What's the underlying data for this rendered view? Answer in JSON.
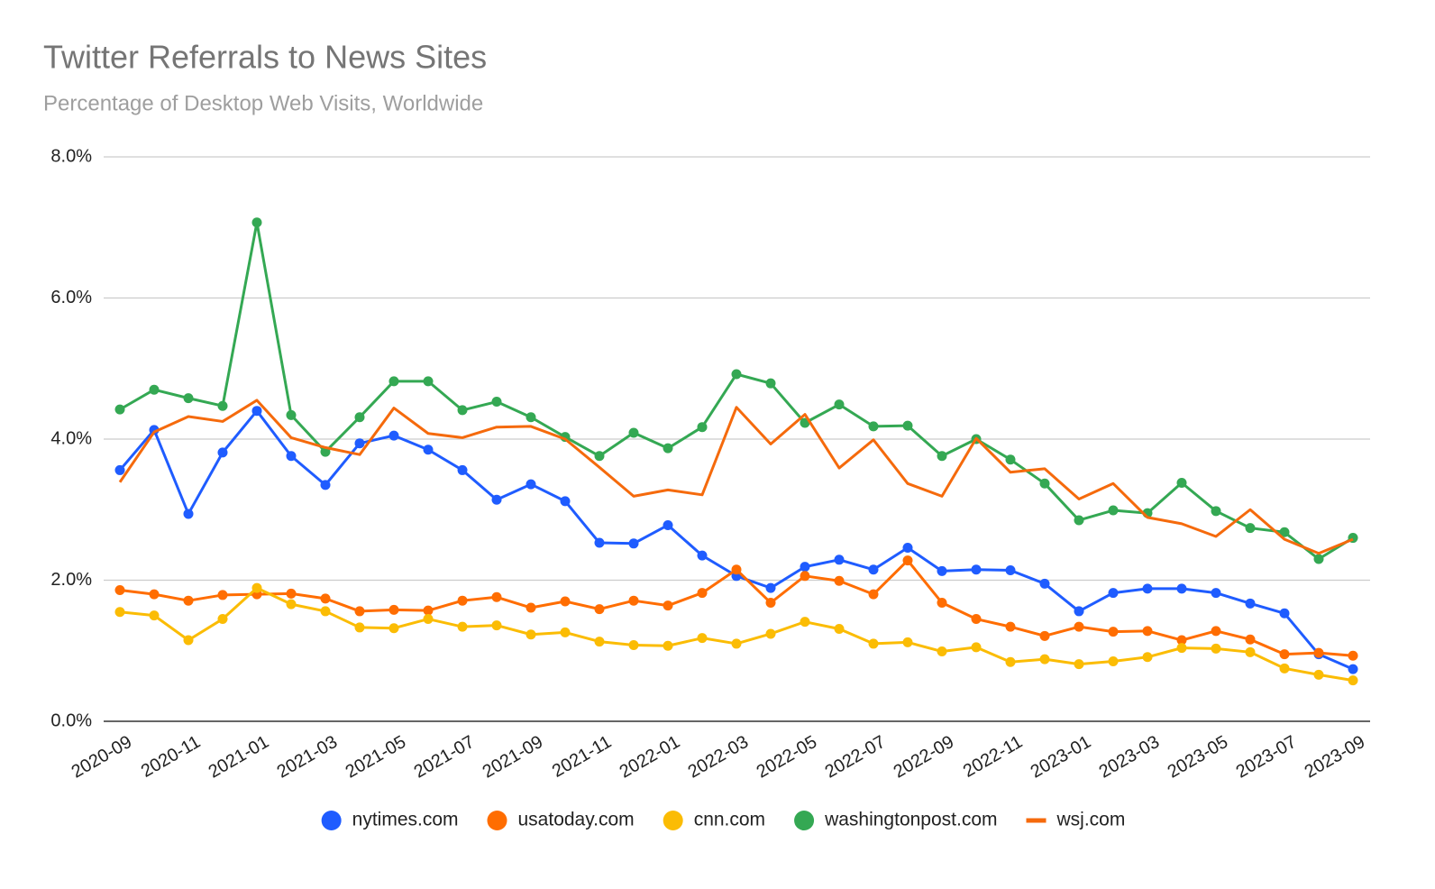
{
  "chart_data": {
    "type": "line",
    "title": "Twitter Referrals to News Sites",
    "subtitle": "Percentage of Desktop Web Visits, Worldwide",
    "categories": [
      "2020-09",
      null,
      "2020-11",
      null,
      "2021-01",
      null,
      "2021-03",
      null,
      "2021-05",
      null,
      "2021-07",
      null,
      "2021-09",
      null,
      "2021-11",
      null,
      "2022-01",
      null,
      "2022-03",
      null,
      "2022-05",
      null,
      "2022-07",
      null,
      "2022-09",
      null,
      "2022-11",
      null,
      "2023-01",
      null,
      "2023-03",
      null,
      "2023-05",
      null,
      "2023-07",
      null,
      "2023-09"
    ],
    "ylim": [
      0,
      8
    ],
    "yticks": [
      {
        "value": 0,
        "label": "0.0%"
      },
      {
        "value": 2,
        "label": "2.0%"
      },
      {
        "value": 4,
        "label": "4.0%"
      },
      {
        "value": 6,
        "label": "6.0%"
      },
      {
        "value": 8,
        "label": "8.0%"
      }
    ],
    "grid": true,
    "legend": "bottom",
    "series": [
      {
        "name": "nytimes.com",
        "color": "#1f5cff",
        "markers": true,
        "values": [
          3.56,
          4.13,
          2.94,
          3.81,
          4.4,
          3.76,
          3.35,
          3.94,
          4.05,
          3.85,
          3.56,
          3.14,
          3.36,
          3.12,
          2.53,
          2.52,
          2.78,
          2.35,
          2.06,
          1.89,
          2.19,
          2.29,
          2.15,
          2.46,
          2.13,
          2.15,
          2.14,
          1.95,
          1.56,
          1.82,
          1.88,
          1.88,
          1.82,
          1.67,
          1.53,
          0.95,
          0.74
        ]
      },
      {
        "name": "usatoday.com",
        "color": "#ff6d01",
        "markers": true,
        "values": [
          1.86,
          1.8,
          1.71,
          1.79,
          1.8,
          1.81,
          1.74,
          1.56,
          1.58,
          1.57,
          1.71,
          1.76,
          1.61,
          1.7,
          1.59,
          1.71,
          1.64,
          1.82,
          2.15,
          1.68,
          2.06,
          1.99,
          1.8,
          2.28,
          1.68,
          1.45,
          1.34,
          1.21,
          1.34,
          1.27,
          1.28,
          1.15,
          1.28,
          1.16,
          0.95,
          0.97,
          0.93
        ]
      },
      {
        "name": "cnn.com",
        "color": "#fbbc04",
        "markers": true,
        "values": [
          1.55,
          1.5,
          1.15,
          1.45,
          1.89,
          1.66,
          1.56,
          1.33,
          1.32,
          1.45,
          1.34,
          1.36,
          1.23,
          1.26,
          1.13,
          1.08,
          1.07,
          1.18,
          1.1,
          1.24,
          1.41,
          1.31,
          1.1,
          1.12,
          0.99,
          1.05,
          0.84,
          0.88,
          0.81,
          0.85,
          0.91,
          1.04,
          1.03,
          0.98,
          0.75,
          0.66,
          0.58
        ]
      },
      {
        "name": "washingtonpost.com",
        "color": "#34a853",
        "markers": true,
        "values": [
          4.42,
          4.7,
          4.58,
          4.47,
          7.07,
          4.34,
          3.82,
          4.31,
          4.82,
          4.82,
          4.41,
          4.53,
          4.31,
          4.03,
          3.76,
          4.09,
          3.87,
          4.17,
          4.92,
          4.79,
          4.23,
          4.49,
          4.18,
          4.19,
          3.76,
          4.0,
          3.71,
          3.37,
          2.85,
          2.99,
          2.95,
          3.38,
          2.98,
          2.74,
          2.68,
          2.3,
          2.6
        ]
      },
      {
        "name": "wsj.com",
        "color": "#f56a0c",
        "markers": false,
        "values": [
          3.39,
          4.1,
          4.32,
          4.25,
          4.55,
          4.02,
          3.88,
          3.78,
          4.44,
          4.08,
          4.02,
          4.17,
          4.18,
          4.0,
          3.6,
          3.19,
          3.28,
          3.21,
          4.45,
          3.93,
          4.35,
          3.59,
          3.99,
          3.37,
          3.19,
          4.01,
          3.53,
          3.58,
          3.15,
          3.37,
          2.89,
          2.8,
          2.62,
          3.0,
          2.58,
          2.38,
          2.58
        ]
      }
    ]
  }
}
